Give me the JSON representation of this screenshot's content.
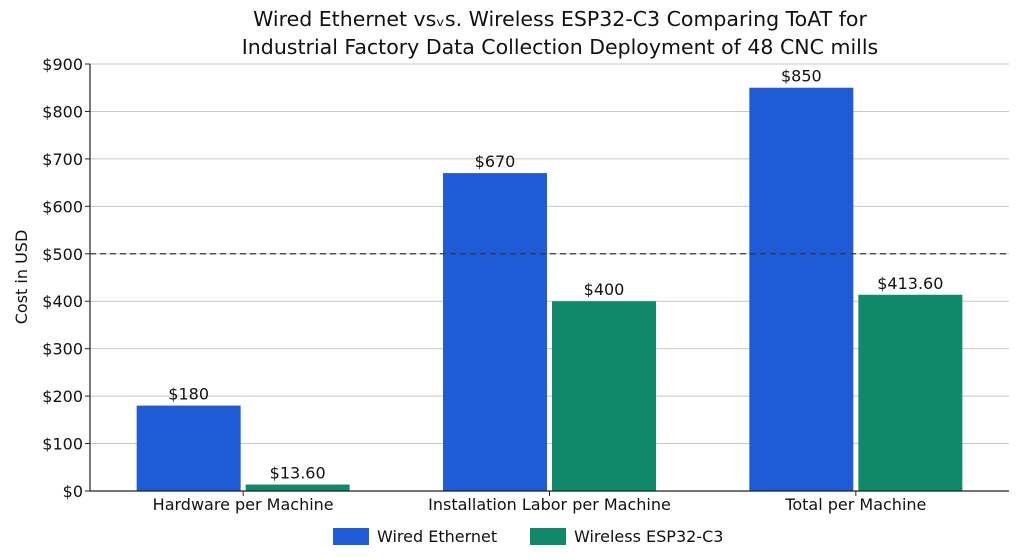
{
  "chart_data": {
    "type": "bar",
    "title_line1": "Wired Ethernet vsᵥs. Wireless ESP32-C3 Comparing ToAT for",
    "title_line2": "Industrial Factory Data Collection Deployment of 48 CNC mills",
    "ylabel": "Cost in USD",
    "categories": [
      "Hardware per Machine",
      "Installation Labor per Machine",
      "Total per Machine"
    ],
    "series": [
      {
        "name": "Wired Ethernet",
        "color": "#1f5bd6",
        "values": [
          180,
          670,
          850
        ],
        "labels": [
          "$180",
          "$670",
          "$850"
        ]
      },
      {
        "name": "Wireless ESP32-C3",
        "color": "#10896a",
        "values": [
          13.6,
          400,
          413.6
        ],
        "labels": [
          "$13.60",
          "$400",
          "$413.60"
        ]
      }
    ],
    "ylim": [
      0,
      900
    ],
    "yticks": [
      0,
      100,
      200,
      300,
      400,
      500,
      600,
      700,
      800,
      900
    ],
    "ytick_labels": [
      "$0",
      "$100",
      "$200",
      "$300",
      "$400",
      "$500",
      "$600",
      "$700",
      "$800",
      "$900"
    ],
    "reference_line": 500,
    "grid": "horizontal",
    "legend_position": "bottom"
  }
}
